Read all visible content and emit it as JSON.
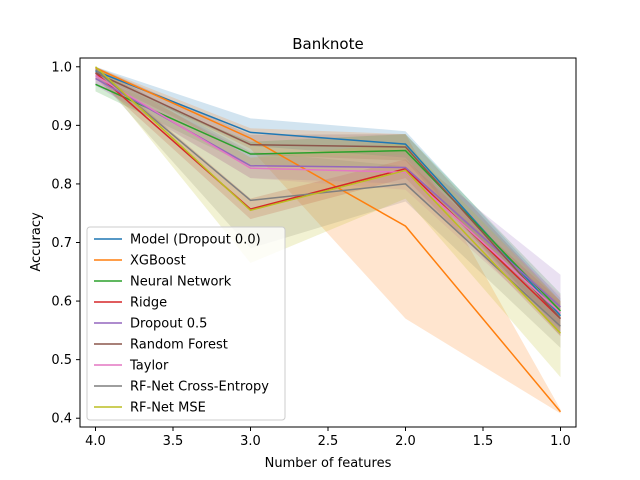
{
  "chart_data": {
    "type": "line",
    "title": "Banknote",
    "xlabel": "Number of features",
    "ylabel": "Accuracy",
    "x": [
      4.0,
      3.0,
      2.0,
      1.0
    ],
    "x_ticks": [
      "4.0",
      "3.5",
      "3.0",
      "2.5",
      "2.0",
      "1.5",
      "1.0"
    ],
    "x_tick_values": [
      4.0,
      3.5,
      3.0,
      2.5,
      2.0,
      1.5,
      1.0
    ],
    "y_ticks": [
      "0.4",
      "0.5",
      "0.6",
      "0.7",
      "0.8",
      "0.9",
      "1.0"
    ],
    "y_tick_values": [
      0.4,
      0.5,
      0.6,
      0.7,
      0.8,
      0.9,
      1.0
    ],
    "xlim": [
      4.1,
      0.9
    ],
    "ylim": [
      0.385,
      1.015
    ],
    "x_inverted": true,
    "grid": false,
    "legend_position": "lower-left",
    "series": [
      {
        "name": "Model (Dropout 0.0)",
        "color": "#1f77b4",
        "values": [
          0.993,
          0.888,
          0.868,
          0.575
        ],
        "lower": [
          0.985,
          0.865,
          0.845,
          0.545
        ],
        "upper": [
          1.0,
          0.912,
          0.89,
          0.605
        ]
      },
      {
        "name": "XGBoost",
        "color": "#ff7f0e",
        "values": [
          0.998,
          0.878,
          0.728,
          0.411
        ],
        "lower": [
          0.99,
          0.86,
          0.57,
          0.408
        ],
        "upper": [
          1.0,
          0.895,
          0.885,
          0.415
        ]
      },
      {
        "name": "Neural Network",
        "color": "#2ca02c",
        "values": [
          0.97,
          0.851,
          0.857,
          0.583
        ],
        "lower": [
          0.958,
          0.83,
          0.83,
          0.553
        ],
        "upper": [
          0.982,
          0.872,
          0.885,
          0.613
        ]
      },
      {
        "name": "Ridge",
        "color": "#d62728",
        "values": [
          0.99,
          0.757,
          0.826,
          0.57
        ],
        "lower": [
          0.98,
          0.74,
          0.81,
          0.54
        ],
        "upper": [
          1.0,
          0.775,
          0.842,
          0.6
        ]
      },
      {
        "name": "Dropout 0.5",
        "color": "#9467bd",
        "values": [
          0.98,
          0.831,
          0.828,
          0.59
        ],
        "lower": [
          0.968,
          0.81,
          0.8,
          0.558
        ],
        "upper": [
          0.992,
          0.852,
          0.856,
          0.645
        ]
      },
      {
        "name": "Random Forest",
        "color": "#8c564b",
        "values": [
          0.99,
          0.867,
          0.863,
          0.57
        ],
        "lower": [
          0.98,
          0.85,
          0.84,
          0.54
        ],
        "upper": [
          1.0,
          0.884,
          0.885,
          0.6
        ]
      },
      {
        "name": "Taylor",
        "color": "#e377c2",
        "values": [
          0.985,
          0.827,
          0.82,
          0.58
        ],
        "lower": [
          0.97,
          0.81,
          0.79,
          0.55
        ],
        "upper": [
          1.0,
          0.845,
          0.85,
          0.61
        ]
      },
      {
        "name": "RF-Net Cross-Entropy",
        "color": "#7f7f7f",
        "values": [
          0.995,
          0.772,
          0.8,
          0.557
        ],
        "lower": [
          0.985,
          0.69,
          0.77,
          0.52
        ],
        "upper": [
          1.0,
          0.855,
          0.83,
          0.595
        ]
      },
      {
        "name": "RF-Net MSE",
        "color": "#bcbd22",
        "values": [
          1.0,
          0.755,
          0.823,
          0.545
        ],
        "lower": [
          0.992,
          0.665,
          0.775,
          0.47
        ],
        "upper": [
          1.0,
          0.845,
          0.87,
          0.6
        ]
      }
    ]
  }
}
